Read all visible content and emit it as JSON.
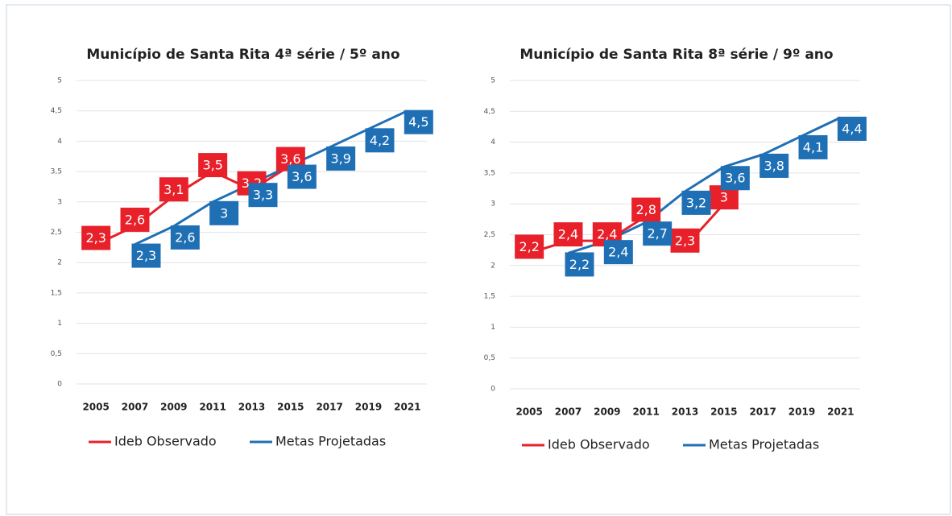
{
  "chart_data": [
    {
      "type": "line",
      "title": "Município de Santa Rita 4ª série / 5º ano",
      "categories": [
        "2005",
        "2007",
        "2009",
        "2011",
        "2013",
        "2015",
        "2017",
        "2019",
        "2021"
      ],
      "series": [
        {
          "name": "Ideb Observado",
          "color": "#e8202a",
          "values": [
            2.3,
            2.6,
            3.1,
            3.5,
            3.2,
            3.6,
            null,
            null,
            null
          ],
          "value_labels": [
            "2,3",
            "2,6",
            "3,1",
            "3,5",
            "3,2",
            "3,6",
            null,
            null,
            null
          ]
        },
        {
          "name": "Metas Projetadas",
          "color": "#1f6fb5",
          "values": [
            null,
            2.3,
            2.6,
            3,
            3.3,
            3.6,
            3.9,
            4.2,
            4.5
          ],
          "value_labels": [
            null,
            "2,3",
            "2,6",
            "3",
            "3,3",
            "3,6",
            "3,9",
            "4,2",
            "4,5"
          ]
        }
      ],
      "ylim": [
        0,
        5
      ],
      "yticks": [
        0,
        {
          "value": 0.5,
          "label": "0,5"
        },
        1,
        {
          "value": 1.5,
          "label": "1,5"
        },
        2,
        {
          "value": 2.5,
          "label": "2,5"
        },
        3,
        {
          "value": 3.5,
          "label": "3,5"
        },
        4,
        {
          "value": 4.5,
          "label": "4,5"
        },
        5
      ],
      "grid": true,
      "legend": "bottom"
    },
    {
      "type": "line",
      "title": "Município de Santa Rita 8ª série / 9º ano",
      "categories": [
        "2005",
        "2007",
        "2009",
        "2011",
        "2013",
        "2015",
        "2017",
        "2019",
        "2021"
      ],
      "series": [
        {
          "name": "Ideb Observado",
          "color": "#e8202a",
          "values": [
            2.2,
            2.4,
            2.4,
            2.8,
            2.3,
            3,
            null,
            null,
            null
          ],
          "value_labels": [
            "2,2",
            "2,4",
            "2,4",
            "2,8",
            "2,3",
            "3",
            null,
            null,
            null
          ]
        },
        {
          "name": "Metas Projetadas",
          "color": "#1f6fb5",
          "values": [
            null,
            2.2,
            2.4,
            2.7,
            3.2,
            3.6,
            3.8,
            4.1,
            4.4
          ],
          "value_labels": [
            null,
            "2,2",
            "2,4",
            "2,7",
            "3,2",
            "3,6",
            "3,8",
            "4,1",
            "4,4"
          ]
        }
      ],
      "ylim": [
        0,
        5
      ],
      "yticks": [
        0,
        {
          "value": 0.5,
          "label": "0,5"
        },
        1,
        {
          "value": 1.5,
          "label": "1,5"
        },
        2,
        {
          "value": 2.5,
          "label": "2,5"
        },
        3,
        {
          "value": 3.5,
          "label": "3,5"
        },
        4,
        {
          "value": 4.5,
          "label": "4,5"
        },
        5
      ],
      "grid": true,
      "legend": "bottom"
    }
  ]
}
